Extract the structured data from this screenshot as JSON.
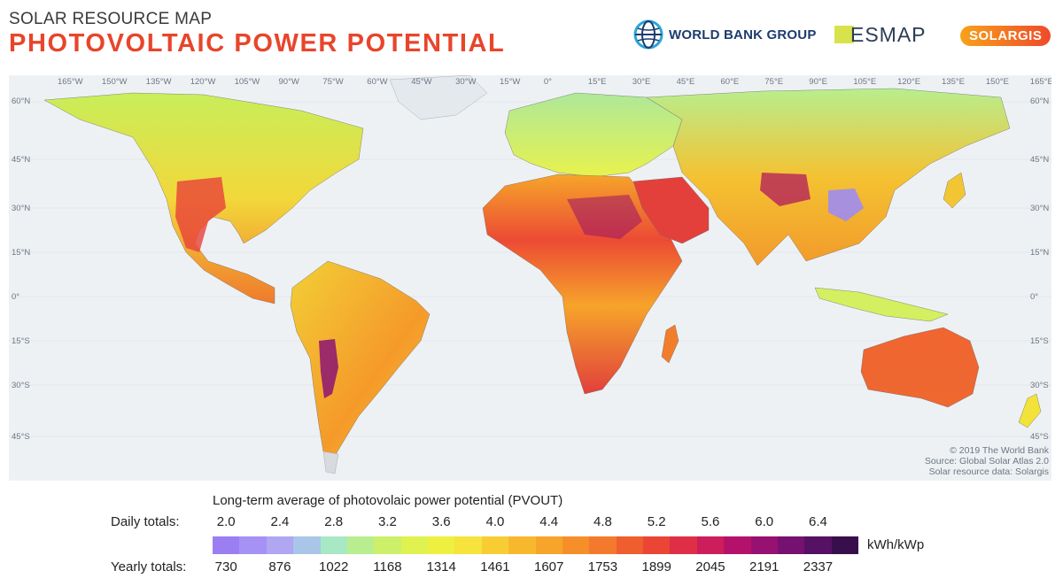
{
  "header": {
    "subtitle": "SOLAR RESOURCE MAP",
    "title": "PHOTOVOLTAIC POWER POTENTIAL"
  },
  "logos": {
    "world_bank": "WORLD BANK GROUP",
    "esmap": "ESMAP",
    "solargis": "SOLARGIS"
  },
  "map": {
    "longitude_labels": [
      "165°W",
      "150°W",
      "135°W",
      "120°W",
      "105°W",
      "90°W",
      "75°W",
      "60°W",
      "45°W",
      "30°W",
      "15°W",
      "0°",
      "15°E",
      "30°E",
      "45°E",
      "60°E",
      "75°E",
      "90°E",
      "105°E",
      "120°E",
      "135°E",
      "150°E",
      "165°E"
    ],
    "latitude_labels": [
      "60°N",
      "45°N",
      "30°N",
      "15°N",
      "0°",
      "15°S",
      "30°S",
      "45°S"
    ],
    "ocean_color": "#eef1f4",
    "land_color": "#f6bb2b"
  },
  "credits": {
    "line1": "© 2019 The World Bank",
    "line2": "Source: Global Solar Atlas 2.0",
    "line3": "Solar resource data: Solargis"
  },
  "legend": {
    "title": "Long-term average of photovolaic power potential (PVOUT)",
    "daily_label": "Daily totals:",
    "yearly_label": "Yearly totals:",
    "unit": "kWh/kWp",
    "daily_values": [
      "2.0",
      "2.4",
      "2.8",
      "3.2",
      "3.6",
      "4.0",
      "4.4",
      "4.8",
      "5.2",
      "5.6",
      "6.0",
      "6.4"
    ],
    "yearly_values": [
      "730",
      "876",
      "1022",
      "1168",
      "1314",
      "1461",
      "1607",
      "1753",
      "1899",
      "2045",
      "2191",
      "2337"
    ],
    "colors": [
      "#9b7ff2",
      "#a692f4",
      "#b0a6f2",
      "#a9c6e8",
      "#a8e8c4",
      "#b8ee90",
      "#ccf06a",
      "#dff250",
      "#eef040",
      "#f6e33c",
      "#f8cd34",
      "#f8b82e",
      "#f7a42a",
      "#f68f2a",
      "#f37a2c",
      "#ef5e2e",
      "#ea4535",
      "#df2f46",
      "#cd1d5b",
      "#b4126a",
      "#961172",
      "#761171",
      "#551163",
      "#380f4c"
    ]
  }
}
